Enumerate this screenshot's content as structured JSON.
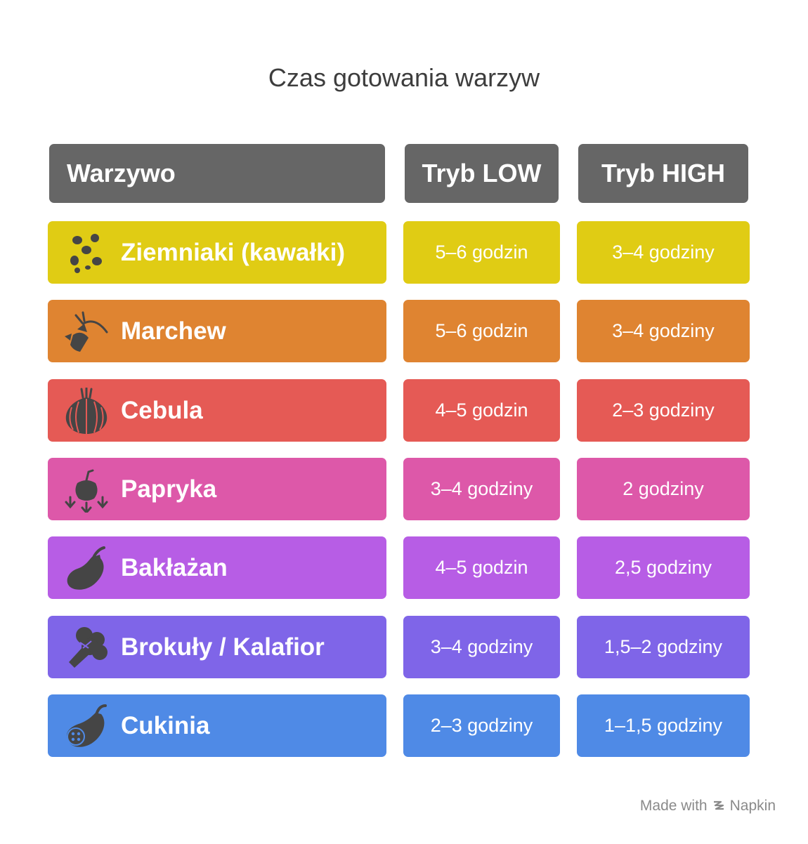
{
  "title": "Czas gotowania warzyw",
  "headers": {
    "vegetable": "Warzywo",
    "low": "Tryb LOW",
    "high": "Tryb HIGH"
  },
  "rows": [
    {
      "name": "Ziemniaki (kawałki)",
      "low": "5–6 godzin",
      "high": "3–4 godziny",
      "color": "#e0cc14",
      "icon": "potatoes-icon"
    },
    {
      "name": "Marchew",
      "low": "5–6 godzin",
      "high": "3–4 godziny",
      "color": "#df8431",
      "icon": "carrot-icon"
    },
    {
      "name": "Cebula",
      "low": "4–5 godzin",
      "high": "2–3 godziny",
      "color": "#e55a55",
      "icon": "onion-icon"
    },
    {
      "name": "Papryka",
      "low": "3–4 godziny",
      "high": "2 godziny",
      "color": "#dd58a9",
      "icon": "pepper-icon"
    },
    {
      "name": "Bakłażan",
      "low": "4–5 godzin",
      "high": "2,5 godziny",
      "color": "#b75de5",
      "icon": "eggplant-icon"
    },
    {
      "name": "Brokuły / Kalafior",
      "low": "3–4 godziny",
      "high": "1,5–2 godziny",
      "color": "#7f65e8",
      "icon": "broccoli-icon"
    },
    {
      "name": "Cukinia",
      "low": "2–3 godziny",
      "high": "1–1,5 godziny",
      "color": "#4f8ae6",
      "icon": "zucchini-icon"
    }
  ],
  "footer": {
    "made_with": "Made with",
    "brand": "Napkin"
  },
  "colors": {
    "header": "#666666",
    "icon": "#454545",
    "text": "#ffffff"
  }
}
